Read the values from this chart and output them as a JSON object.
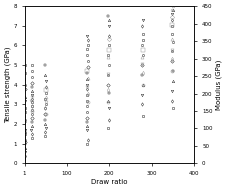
{
  "title": "",
  "xlabel": "Draw ratio",
  "ylabel_left": "Tensile strength (GPa)",
  "ylabel_right": "Modulus (GPa)",
  "xlim": [
    1,
    400
  ],
  "ylim_left": [
    0,
    8
  ],
  "ylim_right": [
    0,
    450
  ],
  "xticks": [
    1,
    100,
    200,
    300,
    400
  ],
  "yticks_left": [
    0,
    1,
    2,
    3,
    4,
    5,
    6,
    7,
    8
  ],
  "yticks_right": [
    0,
    50,
    100,
    150,
    200,
    250,
    300,
    350,
    400,
    450
  ],
  "background": "#ffffff",
  "clusters": [
    {
      "x": 1,
      "tensile": [
        0.2,
        0.4,
        0.6,
        0.8,
        1.0,
        1.1,
        1.2,
        1.3,
        1.4,
        1.5,
        1.6,
        1.7,
        1.8,
        2.0,
        2.1,
        2.2,
        2.4,
        2.6,
        2.8,
        3.0,
        3.2,
        3.4,
        3.6,
        3.8,
        4.0,
        4.3,
        4.6,
        5.0
      ],
      "modulus": []
    },
    {
      "x": 18,
      "tensile": [
        1.3,
        1.5,
        1.7,
        1.9,
        2.1,
        2.3,
        2.5,
        2.7,
        2.9,
        3.1,
        3.3,
        3.5,
        3.7,
        3.9,
        4.1,
        4.4,
        4.7,
        5.0
      ],
      "modulus": [
        150,
        165,
        180,
        195
      ]
    },
    {
      "x": 50,
      "tensile": [
        1.4,
        1.6,
        1.8,
        2.0,
        2.2,
        2.5,
        2.8,
        3.0,
        3.3,
        3.6,
        3.9,
        4.2,
        4.5,
        5.0
      ],
      "modulus": [
        140,
        160,
        175,
        190,
        210
      ]
    },
    {
      "x": 148,
      "tensile": [
        1.0,
        1.2,
        1.7,
        1.9,
        2.1,
        2.3,
        2.6,
        2.9,
        3.2,
        3.5,
        3.8,
        4.0,
        4.3,
        4.6,
        4.9,
        5.2,
        5.5,
        5.8,
        6.0,
        6.3,
        6.5
      ],
      "modulus": [
        175,
        200,
        220,
        245,
        265
      ]
    },
    {
      "x": 198,
      "tensile": [
        1.8,
        2.2,
        2.8,
        3.2,
        3.6,
        4.0,
        4.5,
        5.0,
        5.5,
        6.0,
        6.5,
        7.0,
        7.3,
        7.5
      ],
      "modulus": [
        175,
        210,
        255,
        305,
        325,
        355
      ]
    },
    {
      "x": 278,
      "tensile": [
        2.4,
        3.0,
        3.5,
        4.0,
        4.5,
        5.0,
        5.5,
        6.0,
        6.3,
        6.6,
        7.0,
        7.3
      ],
      "modulus": [
        225,
        260,
        285,
        305,
        325
      ]
    },
    {
      "x": 348,
      "tensile": [
        2.8,
        3.2,
        3.7,
        4.2,
        4.7,
        5.2,
        5.7,
        6.2,
        6.6,
        7.0,
        7.3,
        7.6,
        7.8
      ],
      "modulus": [
        265,
        300,
        325,
        355,
        395,
        420,
        440,
        450
      ]
    }
  ]
}
